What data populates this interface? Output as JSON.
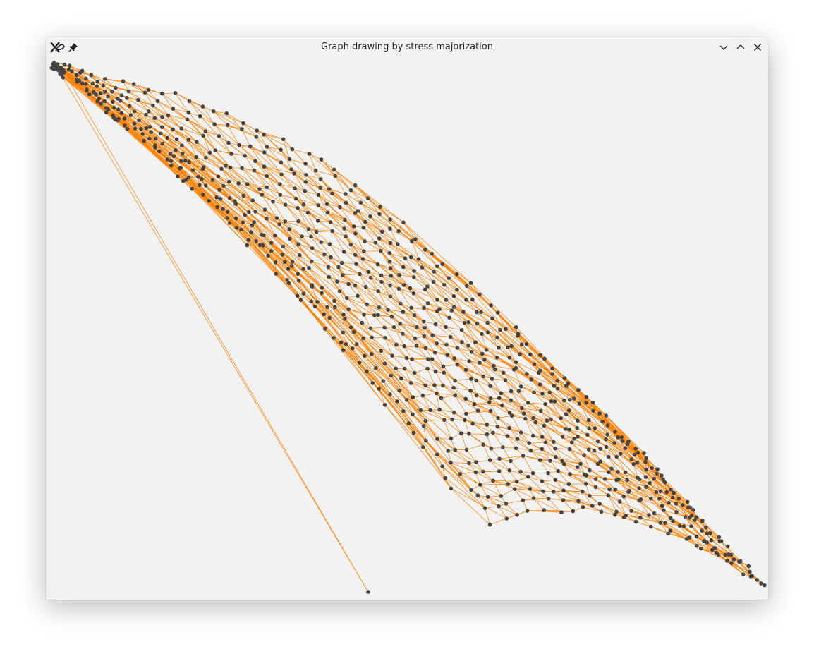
{
  "window": {
    "title": "Graph drawing by stress majorization",
    "app_icon": "xfig-icon",
    "pin_icon": "pin-icon",
    "buttons": [
      "minimize-icon",
      "maximize-icon",
      "close-icon"
    ]
  },
  "graph": {
    "edge_color": "#ff8000",
    "node_color": "#444444",
    "background": "#f2f2f2"
  }
}
